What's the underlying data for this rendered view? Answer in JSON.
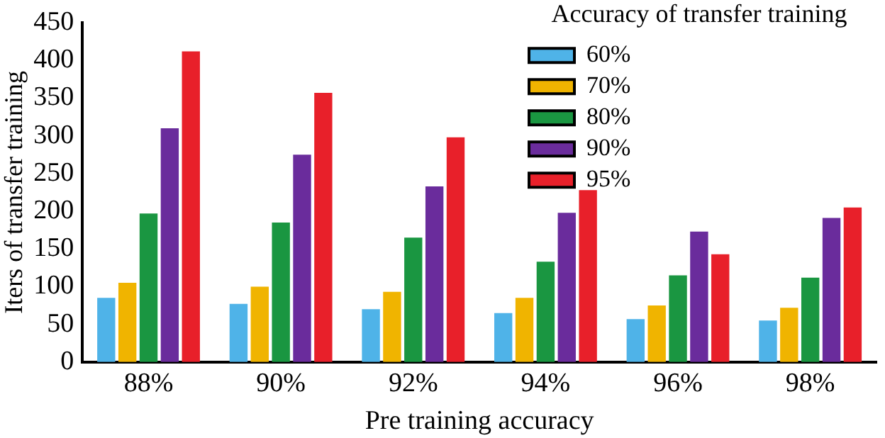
{
  "chart_data": {
    "type": "bar",
    "xlabel": "Pre training accuracy",
    "ylabel": "Iters of transfer training",
    "legend_title": "Accuracy of transfer training",
    "legend": "top right",
    "grid": false,
    "categories": [
      "88%",
      "90%",
      "92%",
      "94%",
      "96%",
      "98%"
    ],
    "ylim": [
      0,
      450
    ],
    "yticks": [
      0,
      50,
      100,
      150,
      200,
      250,
      300,
      350,
      400,
      450
    ],
    "series": [
      {
        "name": "60%",
        "color": "#4fb3e8",
        "values": [
          85,
          77,
          70,
          65,
          57,
          55
        ]
      },
      {
        "name": "70%",
        "color": "#f0b400",
        "values": [
          105,
          100,
          93,
          85,
          75,
          72
        ]
      },
      {
        "name": "80%",
        "color": "#1a9641",
        "values": [
          197,
          185,
          165,
          133,
          115,
          112
        ]
      },
      {
        "name": "90%",
        "color": "#6a2c9c",
        "values": [
          310,
          275,
          233,
          198,
          173,
          191
        ]
      },
      {
        "name": "95%",
        "color": "#e8202a",
        "values": [
          412,
          357,
          298,
          228,
          143,
          205
        ]
      }
    ]
  }
}
